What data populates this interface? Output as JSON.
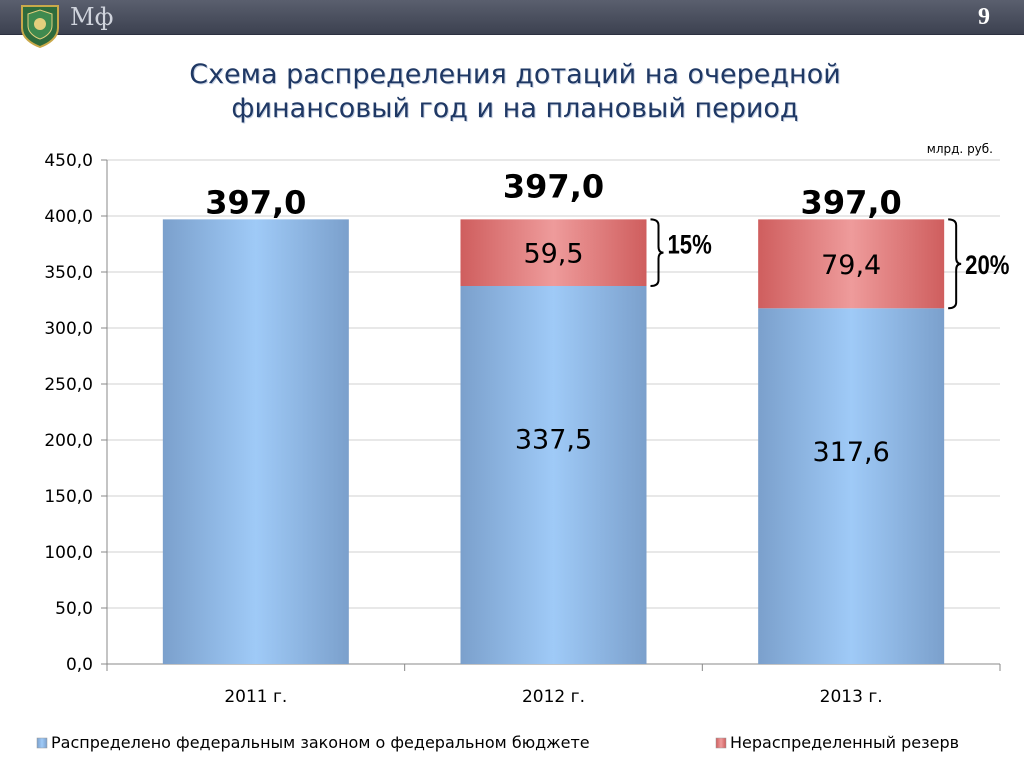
{
  "header": {
    "logo_text": "Мф",
    "page_number": "9"
  },
  "title_lines": [
    "Схема распределения дотаций на очередной",
    "финансовый год и на плановый период"
  ],
  "chart_data": {
    "type": "bar",
    "stacked": true,
    "unit_note": "млрд. руб.",
    "categories": [
      "2011 г.",
      "2012 г.",
      "2013 г."
    ],
    "series": [
      {
        "name": "Распределено федеральным законом о федеральном бюджете",
        "color": "#7ba0cc",
        "highlight": "#9fcaf7",
        "values": [
          397.0,
          337.5,
          317.6
        ],
        "labels": [
          "",
          "337,5",
          "317,6"
        ]
      },
      {
        "name": "Нераспределенный резерв",
        "color": "#cf5e5e",
        "highlight": "#ee9b9b",
        "values": [
          0,
          59.5,
          79.4
        ],
        "labels": [
          "",
          "59,5",
          "79,4"
        ]
      }
    ],
    "totals": [
      "397,0",
      "397,0",
      "397,0"
    ],
    "brace_labels": [
      "",
      "15%",
      "20%"
    ],
    "y_ticks": [
      "0,0",
      "50,0",
      "100,0",
      "150,0",
      "200,0",
      "250,0",
      "300,0",
      "350,0",
      "400,0",
      "450,0"
    ],
    "ylim": [
      0,
      450
    ],
    "grid": true,
    "legend_position": "bottom",
    "colors": {
      "title": "#1f3864",
      "topbar": "#4a4f5e"
    }
  }
}
